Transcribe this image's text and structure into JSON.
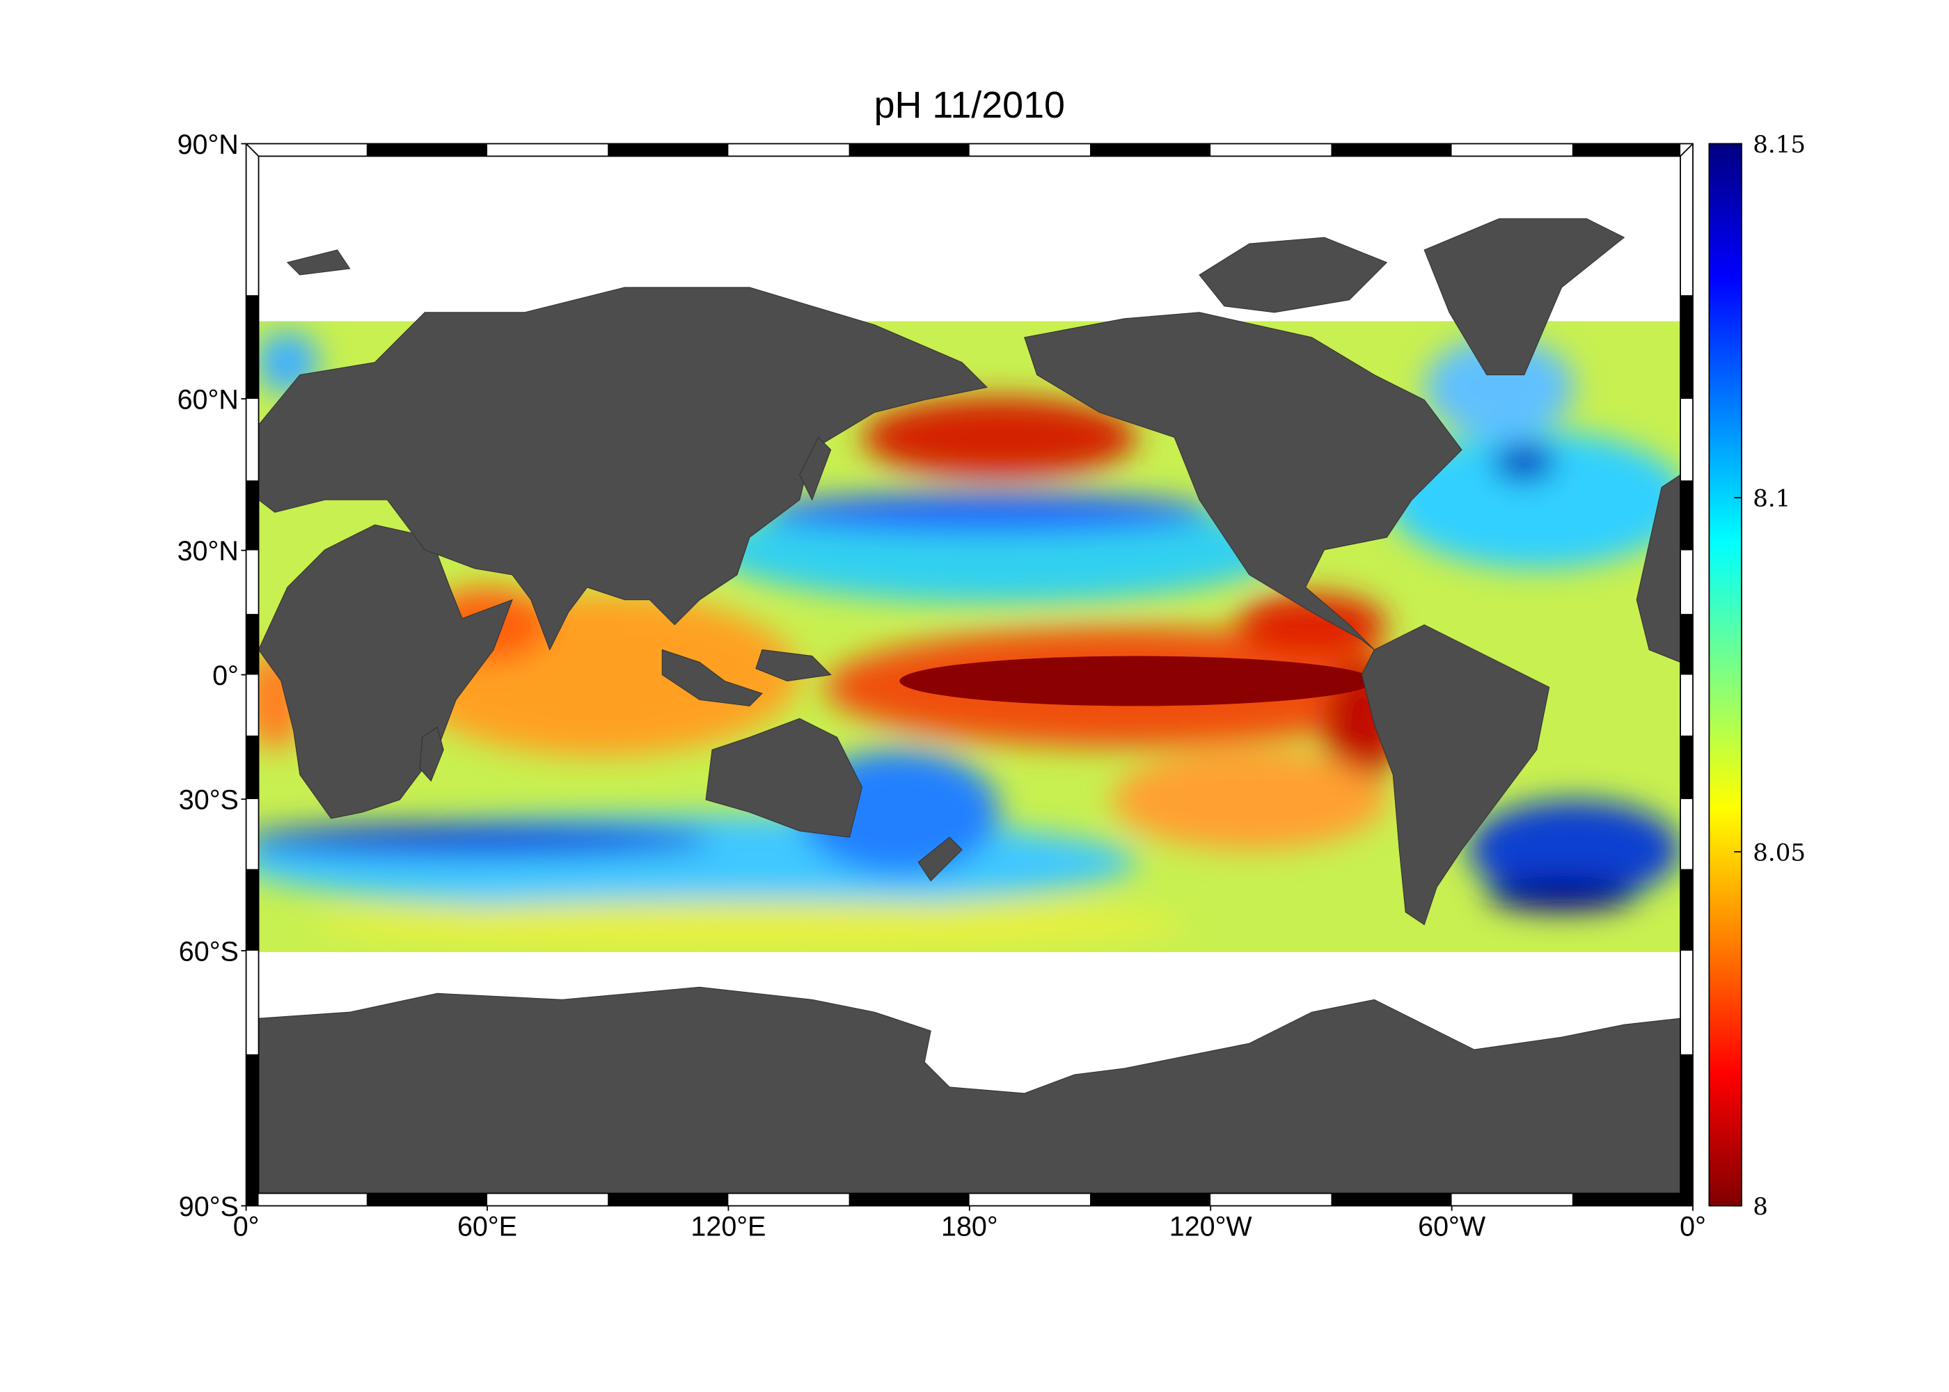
{
  "title": "pH  11/2010",
  "map": {
    "lat_ticks": [
      {
        "value": 90,
        "label": "90°N"
      },
      {
        "value": 60,
        "label": "60°N"
      },
      {
        "value": 30,
        "label": "30°N"
      },
      {
        "value": 0,
        "label": "0°"
      },
      {
        "value": -30,
        "label": "30°S"
      },
      {
        "value": -60,
        "label": "60°S"
      },
      {
        "value": -90,
        "label": "90°S"
      }
    ],
    "lon_ticks": [
      {
        "value": 0,
        "label": "0°"
      },
      {
        "value": 60,
        "label": "60°E"
      },
      {
        "value": 120,
        "label": "120°E"
      },
      {
        "value": 180,
        "label": "180°"
      },
      {
        "value": 240,
        "label": "120°W"
      },
      {
        "value": 300,
        "label": "60°W"
      },
      {
        "value": 360,
        "label": "0°"
      }
    ]
  },
  "colorbar": {
    "lim": [
      8,
      8.15
    ],
    "ticks": [
      8,
      8.05,
      8.1,
      8.15
    ],
    "colormap": [
      "#800000",
      "#ff0000",
      "#ff8000",
      "#ffff00",
      "#80ff80",
      "#00ffff",
      "#0080ff",
      "#0000ff",
      "#000080"
    ]
  }
}
